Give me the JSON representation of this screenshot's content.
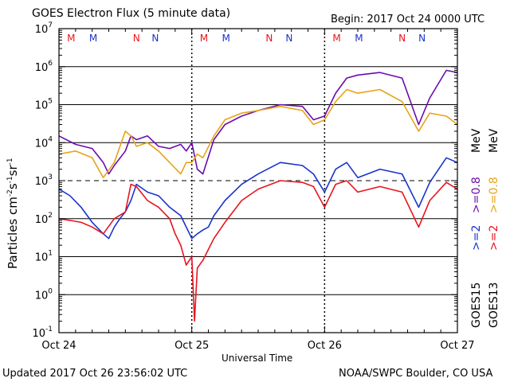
{
  "header": {
    "title": "GOES Electron Flux (5 minute data)",
    "begin": "Begin: 2017 Oct 24 0000 UTC"
  },
  "footer": {
    "updated": "Updated 2017 Oct 26 23:56:02 UTC",
    "credit": "NOAA/SWPC Boulder, CO USA"
  },
  "colors": {
    "goes15_ge08": "#6a0dad",
    "goes13_ge08": "#e8a317",
    "goes15_ge2": "#1a33cc",
    "goes13_ge2": "#e8141e",
    "marker_M": "#e8141e",
    "marker_N_red": "#e8141e",
    "marker_N_blue": "#1a33cc"
  },
  "right_labels": {
    "goes15": "GOES15",
    "goes13": "GOES13",
    "ge2_blue": ">=2",
    "ge08_purple": ">=0.8",
    "ge2_red": ">=2",
    "ge08_orange": ">=0.8",
    "unit": "MeV"
  },
  "chart_data": {
    "type": "line",
    "title": "GOES Electron Flux (5 minute data)",
    "xlabel": "Universal Time",
    "ylabel": "Particles cm-2s-1sr-1",
    "y_scale": "log",
    "ylim": [
      0.1,
      10000000
    ],
    "y_ticks": [
      "10^-1",
      "10^0",
      "10^1",
      "10^2",
      "10^3",
      "10^4",
      "10^5",
      "10^6",
      "10^7"
    ],
    "x_ticks": [
      "Oct 24",
      "Oct 25",
      "Oct 26",
      "Oct 27"
    ],
    "xlim_hours": [
      0,
      72
    ],
    "grid": true,
    "threshold_dashed": 1000,
    "markers": [
      {
        "label": "M",
        "hour": 2.2,
        "color": "red"
      },
      {
        "label": "M",
        "hour": 6.2,
        "color": "blue"
      },
      {
        "label": "N",
        "hour": 14.0,
        "color": "red"
      },
      {
        "label": "N",
        "hour": 17.4,
        "color": "blue"
      },
      {
        "label": "M",
        "hour": 26.2,
        "color": "red"
      },
      {
        "label": "M",
        "hour": 30.2,
        "color": "blue"
      },
      {
        "label": "N",
        "hour": 38.0,
        "color": "red"
      },
      {
        "label": "N",
        "hour": 41.6,
        "color": "blue"
      },
      {
        "label": "M",
        "hour": 50.2,
        "color": "red"
      },
      {
        "label": "M",
        "hour": 54.2,
        "color": "blue"
      },
      {
        "label": "N",
        "hour": 62.0,
        "color": "red"
      },
      {
        "label": "N",
        "hour": 65.6,
        "color": "blue"
      }
    ],
    "series": [
      {
        "name": "GOES15 >=0.8 MeV",
        "x": [
          0,
          3,
          6,
          8,
          9,
          10,
          12,
          13,
          14,
          16,
          18,
          20,
          22,
          23,
          24,
          25,
          26,
          28,
          30,
          33,
          36,
          40,
          44,
          46,
          48,
          50,
          52,
          54,
          58,
          62,
          65,
          67,
          70,
          72
        ],
        "y": [
          15000,
          9000,
          7000,
          3000,
          1500,
          2500,
          6000,
          15000,
          12000,
          15000,
          8000,
          7000,
          9000,
          6000,
          10000,
          2000,
          1500,
          12000,
          30000,
          50000,
          70000,
          100000,
          90000,
          40000,
          50000,
          200000,
          500000,
          600000,
          700000,
          500000,
          30000,
          150000,
          800000,
          700000
        ]
      },
      {
        "name": "GOES13 >=0.8 MeV",
        "x": [
          0,
          3,
          6,
          8,
          10,
          12,
          13,
          14,
          16,
          18,
          20,
          22,
          23,
          24,
          25,
          26,
          28,
          30,
          33,
          36,
          40,
          44,
          46,
          48,
          50,
          52,
          54,
          58,
          62,
          65,
          67,
          70,
          72
        ],
        "y": [
          5000,
          6000,
          4000,
          1200,
          3000,
          20000,
          15000,
          8000,
          10000,
          6000,
          3000,
          1500,
          3000,
          3000,
          5000,
          4000,
          15000,
          40000,
          60000,
          70000,
          90000,
          70000,
          30000,
          40000,
          120000,
          250000,
          200000,
          250000,
          120000,
          20000,
          60000,
          50000,
          30000
        ]
      },
      {
        "name": "GOES15 >=2 MeV",
        "x": [
          0,
          2,
          4,
          6,
          8,
          9,
          10,
          11,
          12,
          13,
          14,
          16,
          18,
          20,
          22,
          24,
          25,
          26,
          27,
          28,
          30,
          33,
          36,
          40,
          44,
          46,
          48,
          50,
          52,
          54,
          58,
          62,
          65,
          67,
          70,
          72
        ],
        "y": [
          600,
          400,
          200,
          80,
          40,
          30,
          60,
          100,
          150,
          300,
          800,
          500,
          400,
          200,
          120,
          30,
          40,
          50,
          60,
          120,
          300,
          800,
          1500,
          3000,
          2500,
          1500,
          500,
          2000,
          3000,
          1200,
          2000,
          1500,
          200,
          900,
          4000,
          3000
        ]
      },
      {
        "name": "GOES13 >=2 MeV",
        "x": [
          0,
          2,
          4,
          6,
          8,
          10,
          12,
          13,
          14,
          16,
          18,
          20,
          21,
          22,
          23,
          24,
          24.5,
          25,
          26,
          28,
          30,
          33,
          36,
          40,
          44,
          46,
          48,
          50,
          52,
          54,
          58,
          62,
          65,
          67,
          70,
          72
        ],
        "y": [
          100,
          90,
          80,
          60,
          40,
          100,
          150,
          800,
          700,
          300,
          200,
          100,
          40,
          20,
          6,
          10,
          0.2,
          5,
          8,
          30,
          80,
          300,
          600,
          1000,
          900,
          700,
          200,
          800,
          1000,
          500,
          700,
          500,
          60,
          300,
          900,
          600
        ]
      }
    ]
  }
}
